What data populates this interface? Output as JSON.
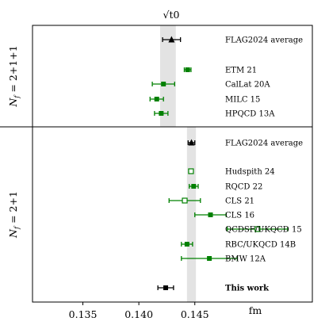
{
  "chart_data": {
    "type": "scatter",
    "title": "√t0",
    "xlabel": "fm",
    "xlim": [
      0.1305,
      0.1555
    ],
    "xticks": [
      0.135,
      0.14,
      0.145
    ],
    "xtick_labels": [
      "0.135",
      "0.140",
      "0.145"
    ],
    "panels": [
      {
        "label": "N_f = 2+1+1",
        "band": [
          0.1419,
          0.1433
        ],
        "points": [
          {
            "name": "FLAG2024 average",
            "value": 0.14292,
            "err_lo": 0.0008,
            "err_hi": 0.0008,
            "marker": "triangle",
            "color": "#000000"
          },
          {
            "name": "ETM 21",
            "value": 0.14436,
            "err_lo": 0.0003,
            "err_hi": 0.0003,
            "marker": "square",
            "color": "#008000"
          },
          {
            "name": "CalLat 20A",
            "value": 0.1422,
            "err_lo": 0.001,
            "err_hi": 0.001,
            "marker": "square",
            "color": "#008000"
          },
          {
            "name": "MILC 15",
            "value": 0.1416,
            "err_lo": 0.0006,
            "err_hi": 0.0006,
            "marker": "square",
            "color": "#008000"
          },
          {
            "name": "HPQCD 13A",
            "value": 0.142,
            "err_lo": 0.0006,
            "err_hi": 0.0006,
            "marker": "square",
            "color": "#008000"
          }
        ]
      },
      {
        "label": "N_f = 2+1",
        "band": [
          0.1443,
          0.1451
        ],
        "points": [
          {
            "name": "FLAG2024 average",
            "value": 0.1447,
            "err_lo": 0.0003,
            "err_hi": 0.0003,
            "marker": "triangle",
            "color": "#000000"
          },
          {
            "name": "Hudspith 24",
            "value": 0.14466,
            "err_lo": 0.0002,
            "err_hi": 0.0002,
            "marker": "square-open",
            "color": "#008000"
          },
          {
            "name": "RQCD 22",
            "value": 0.1449,
            "err_lo": 0.0004,
            "err_hi": 0.0004,
            "marker": "square",
            "color": "#008000"
          },
          {
            "name": "CLS 21",
            "value": 0.1441,
            "err_lo": 0.0014,
            "err_hi": 0.0014,
            "marker": "square-open",
            "color": "#008000"
          },
          {
            "name": "CLS 16",
            "value": 0.1464,
            "err_lo": 0.0014,
            "err_hi": 0.0014,
            "marker": "square",
            "color": "#008000"
          },
          {
            "name": "QCDSF/UKQCD 15",
            "value": 0.1506,
            "err_lo": 0.0027,
            "err_hi": 0.0027,
            "marker": "square-open",
            "color": "#008000"
          },
          {
            "name": "RBC/UKQCD 14B",
            "value": 0.1443,
            "err_lo": 0.0005,
            "err_hi": 0.0005,
            "marker": "square",
            "color": "#008000"
          },
          {
            "name": "BMW 12A",
            "value": 0.1463,
            "err_lo": 0.0025,
            "err_hi": 0.0025,
            "marker": "square",
            "color": "#008000"
          },
          {
            "name": "This work",
            "value": 0.1424,
            "err_lo": 0.0007,
            "err_hi": 0.0007,
            "marker": "square",
            "color": "#000000",
            "bold": true
          }
        ]
      }
    ]
  },
  "colors": {
    "band": "#e3e3e3",
    "green": "#008000",
    "black": "#000000"
  }
}
